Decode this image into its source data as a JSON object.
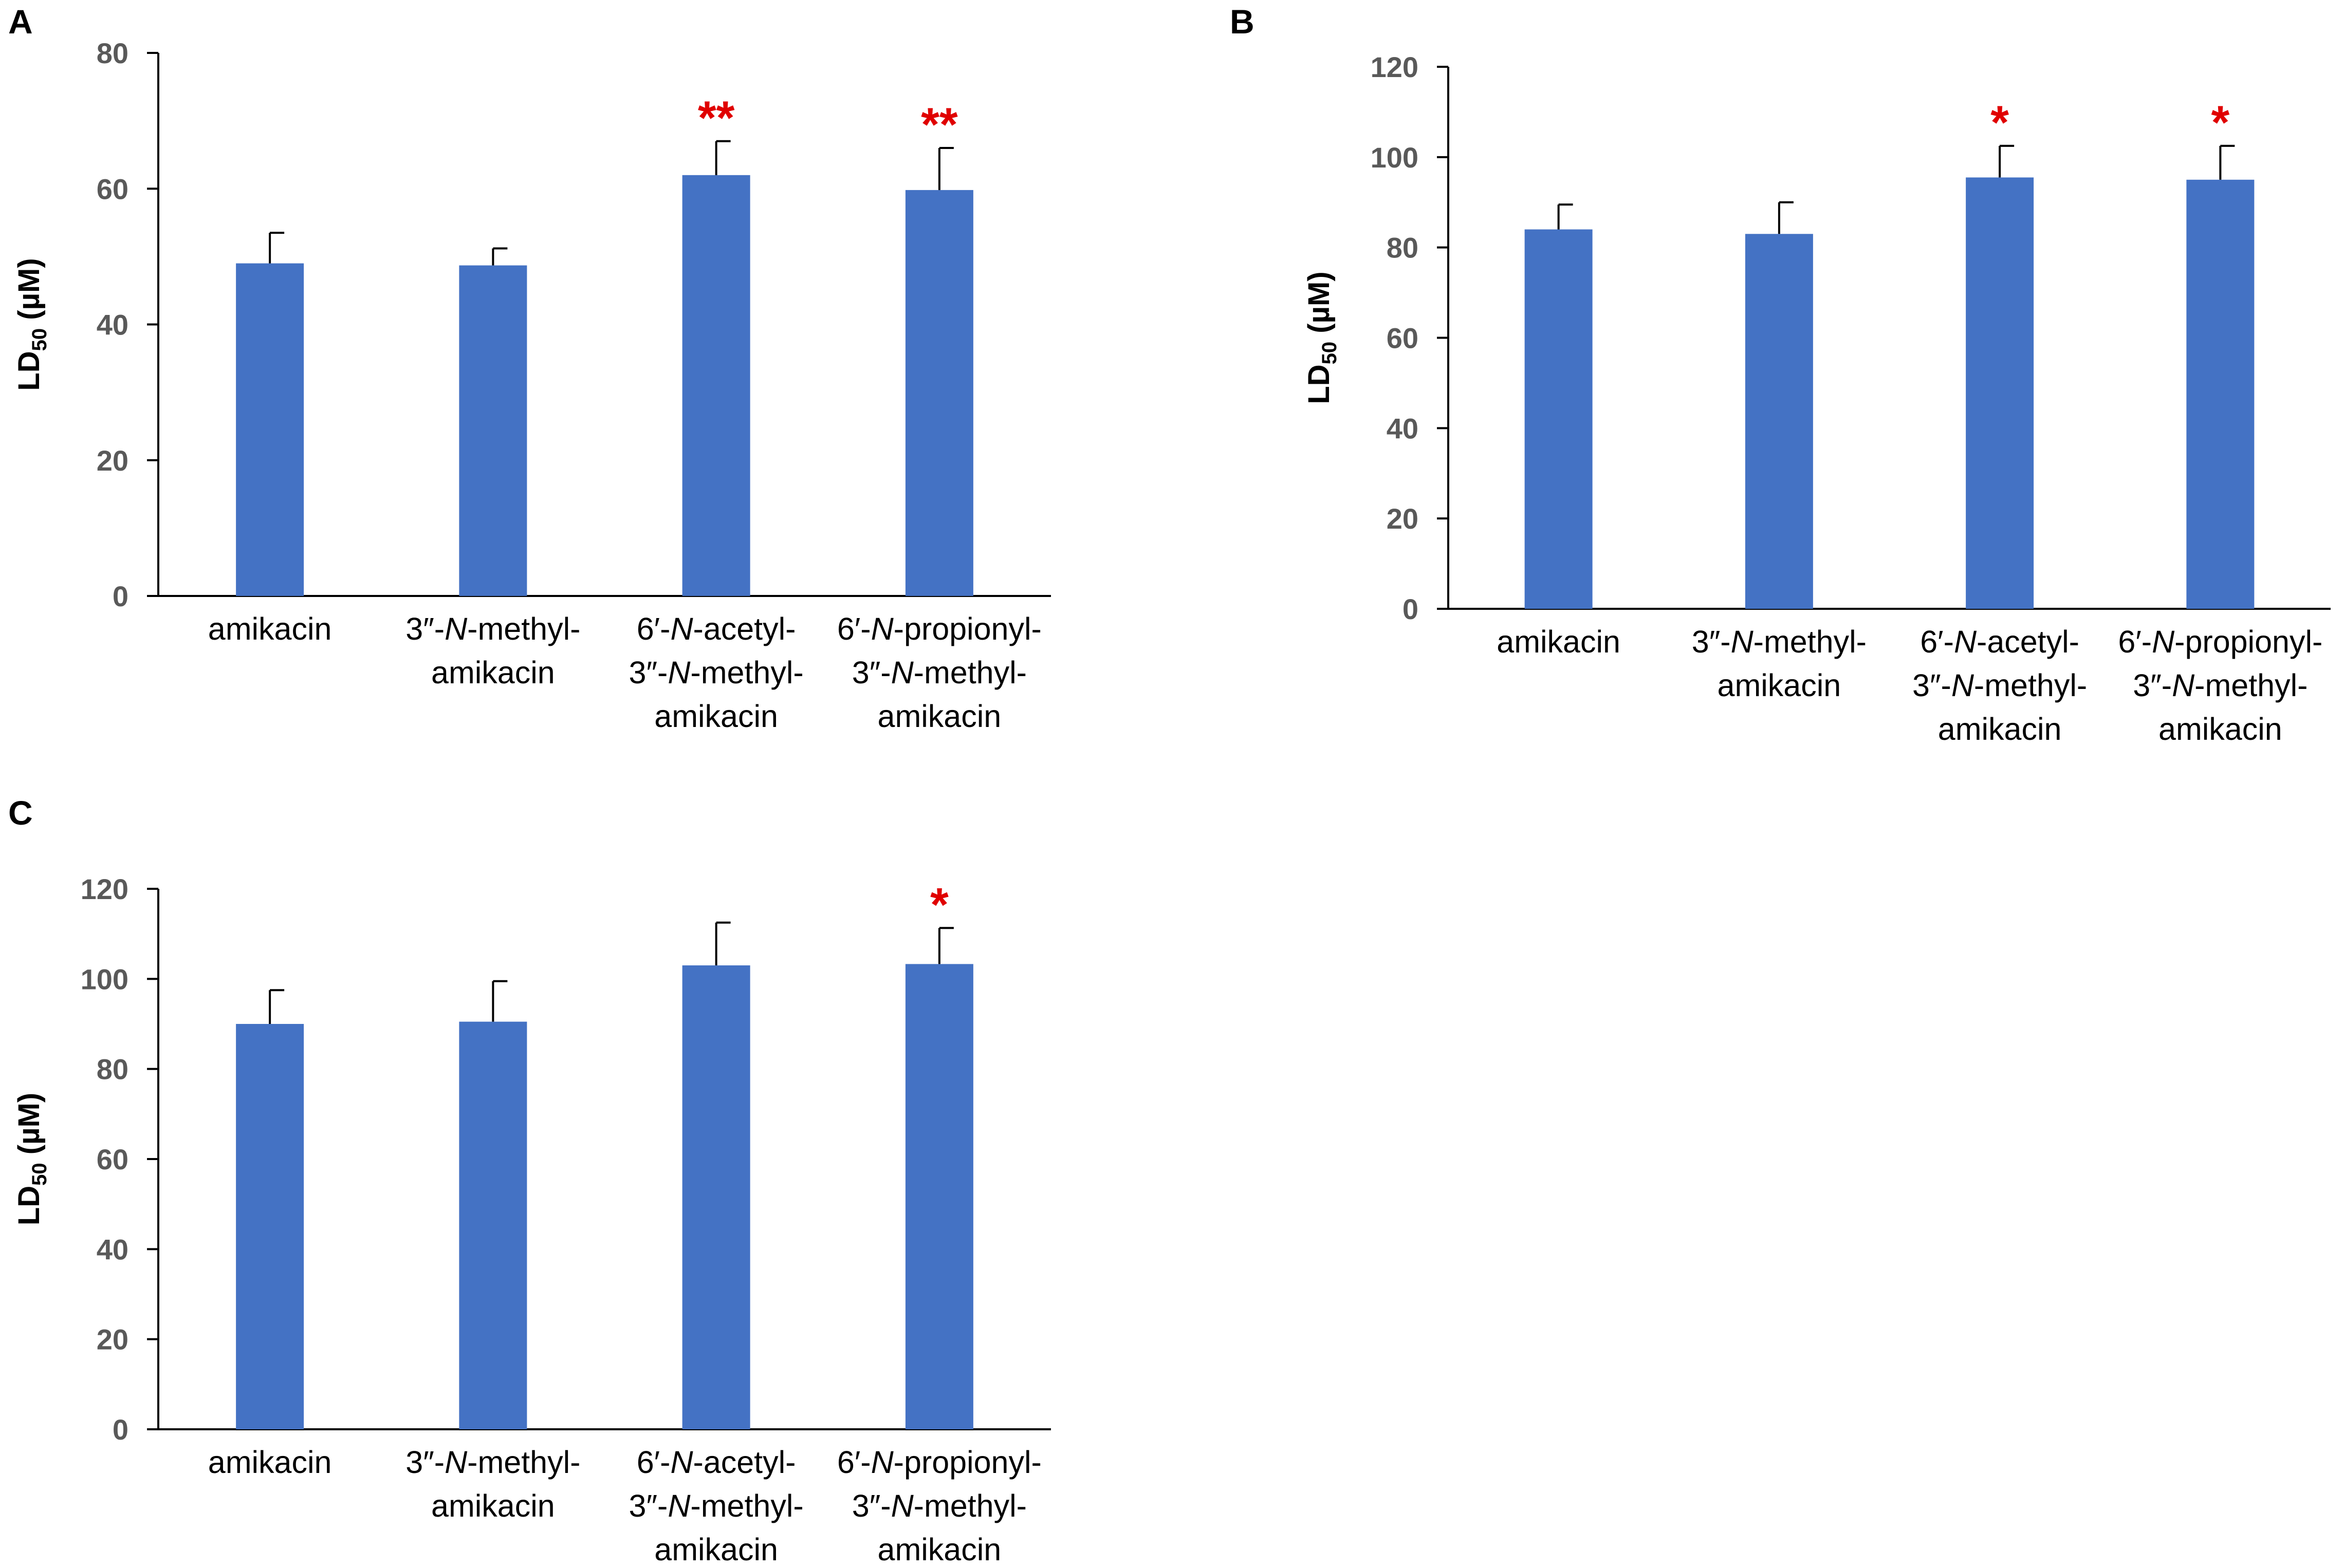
{
  "colors": {
    "bar": "#4472C4",
    "axis": "#000000",
    "errorbar": "#000000",
    "significance": "#E00000",
    "tick_text": "#595959"
  },
  "chart_data": [
    {
      "panel": "A",
      "type": "bar",
      "ylabel": {
        "main": "LD",
        "sub": "50",
        "unit": " (µM)"
      },
      "ylim": [
        0,
        80
      ],
      "yticks": [
        "0",
        "20",
        "40",
        "60",
        "80"
      ],
      "grid": false,
      "categories": [
        [
          {
            "t": "amikacin"
          }
        ],
        [
          {
            "t": "3″-"
          },
          {
            "t": "N",
            "i": true
          },
          {
            "t": "-methyl-"
          },
          {
            "br": true
          },
          {
            "t": "amikacin"
          }
        ],
        [
          {
            "t": "6′-"
          },
          {
            "t": "N",
            "i": true
          },
          {
            "t": "-acetyl-"
          },
          {
            "br": true
          },
          {
            "t": "3″-"
          },
          {
            "t": "N",
            "i": true
          },
          {
            "t": "-methyl-"
          },
          {
            "br": true
          },
          {
            "t": "amikacin"
          }
        ],
        [
          {
            "t": "6′-"
          },
          {
            "t": "N",
            "i": true
          },
          {
            "t": "-propionyl-"
          },
          {
            "br": true
          },
          {
            "t": "3″-"
          },
          {
            "t": "N",
            "i": true
          },
          {
            "t": "-methyl-"
          },
          {
            "br": true
          },
          {
            "t": "amikacin"
          }
        ]
      ],
      "values": [
        49,
        48.7,
        62,
        59.8
      ],
      "errors": [
        4.5,
        2.5,
        5,
        6.2
      ],
      "significance": [
        "",
        "",
        "**",
        "**"
      ]
    },
    {
      "panel": "B",
      "type": "bar",
      "ylabel": {
        "main": "LD",
        "sub": "50",
        "unit": " (µM)"
      },
      "ylim": [
        0,
        120
      ],
      "yticks": [
        "0",
        "20",
        "40",
        "60",
        "80",
        "100",
        "120"
      ],
      "grid": false,
      "categories": [
        [
          {
            "t": "amikacin"
          }
        ],
        [
          {
            "t": "3″-"
          },
          {
            "t": "N",
            "i": true
          },
          {
            "t": "-methyl-"
          },
          {
            "br": true
          },
          {
            "t": "amikacin"
          }
        ],
        [
          {
            "t": "6′-"
          },
          {
            "t": "N",
            "i": true
          },
          {
            "t": "-acetyl-"
          },
          {
            "br": true
          },
          {
            "t": "3″-"
          },
          {
            "t": "N",
            "i": true
          },
          {
            "t": "-methyl-"
          },
          {
            "br": true
          },
          {
            "t": "amikacin"
          }
        ],
        [
          {
            "t": "6′-"
          },
          {
            "t": "N",
            "i": true
          },
          {
            "t": "-propionyl-"
          },
          {
            "br": true
          },
          {
            "t": "3″-"
          },
          {
            "t": "N",
            "i": true
          },
          {
            "t": "-methyl-"
          },
          {
            "br": true
          },
          {
            "t": "amikacin"
          }
        ]
      ],
      "values": [
        84,
        83,
        95.5,
        95
      ],
      "errors": [
        5.5,
        7,
        7,
        7.5
      ],
      "significance": [
        "",
        "",
        "*",
        "*"
      ]
    },
    {
      "panel": "C",
      "type": "bar",
      "ylabel": {
        "main": "LD",
        "sub": "50",
        "unit": " (µM)"
      },
      "ylim": [
        0,
        120
      ],
      "yticks": [
        "0",
        "20",
        "40",
        "60",
        "80",
        "100",
        "120"
      ],
      "grid": false,
      "categories": [
        [
          {
            "t": "amikacin"
          }
        ],
        [
          {
            "t": "3″-"
          },
          {
            "t": "N",
            "i": true
          },
          {
            "t": "-methyl-"
          },
          {
            "br": true
          },
          {
            "t": "amikacin"
          }
        ],
        [
          {
            "t": "6′-"
          },
          {
            "t": "N",
            "i": true
          },
          {
            "t": "-acetyl-"
          },
          {
            "br": true
          },
          {
            "t": "3″-"
          },
          {
            "t": "N",
            "i": true
          },
          {
            "t": "-methyl-"
          },
          {
            "br": true
          },
          {
            "t": "amikacin"
          }
        ],
        [
          {
            "t": "6′-"
          },
          {
            "t": "N",
            "i": true
          },
          {
            "t": "-propionyl-"
          },
          {
            "br": true
          },
          {
            "t": "3″-"
          },
          {
            "t": "N",
            "i": true
          },
          {
            "t": "-methyl-"
          },
          {
            "br": true
          },
          {
            "t": "amikacin"
          }
        ]
      ],
      "values": [
        90,
        90.5,
        103,
        103.3
      ],
      "errors": [
        7.5,
        9,
        9.5,
        8
      ],
      "significance": [
        "",
        "",
        "",
        "*"
      ]
    }
  ]
}
